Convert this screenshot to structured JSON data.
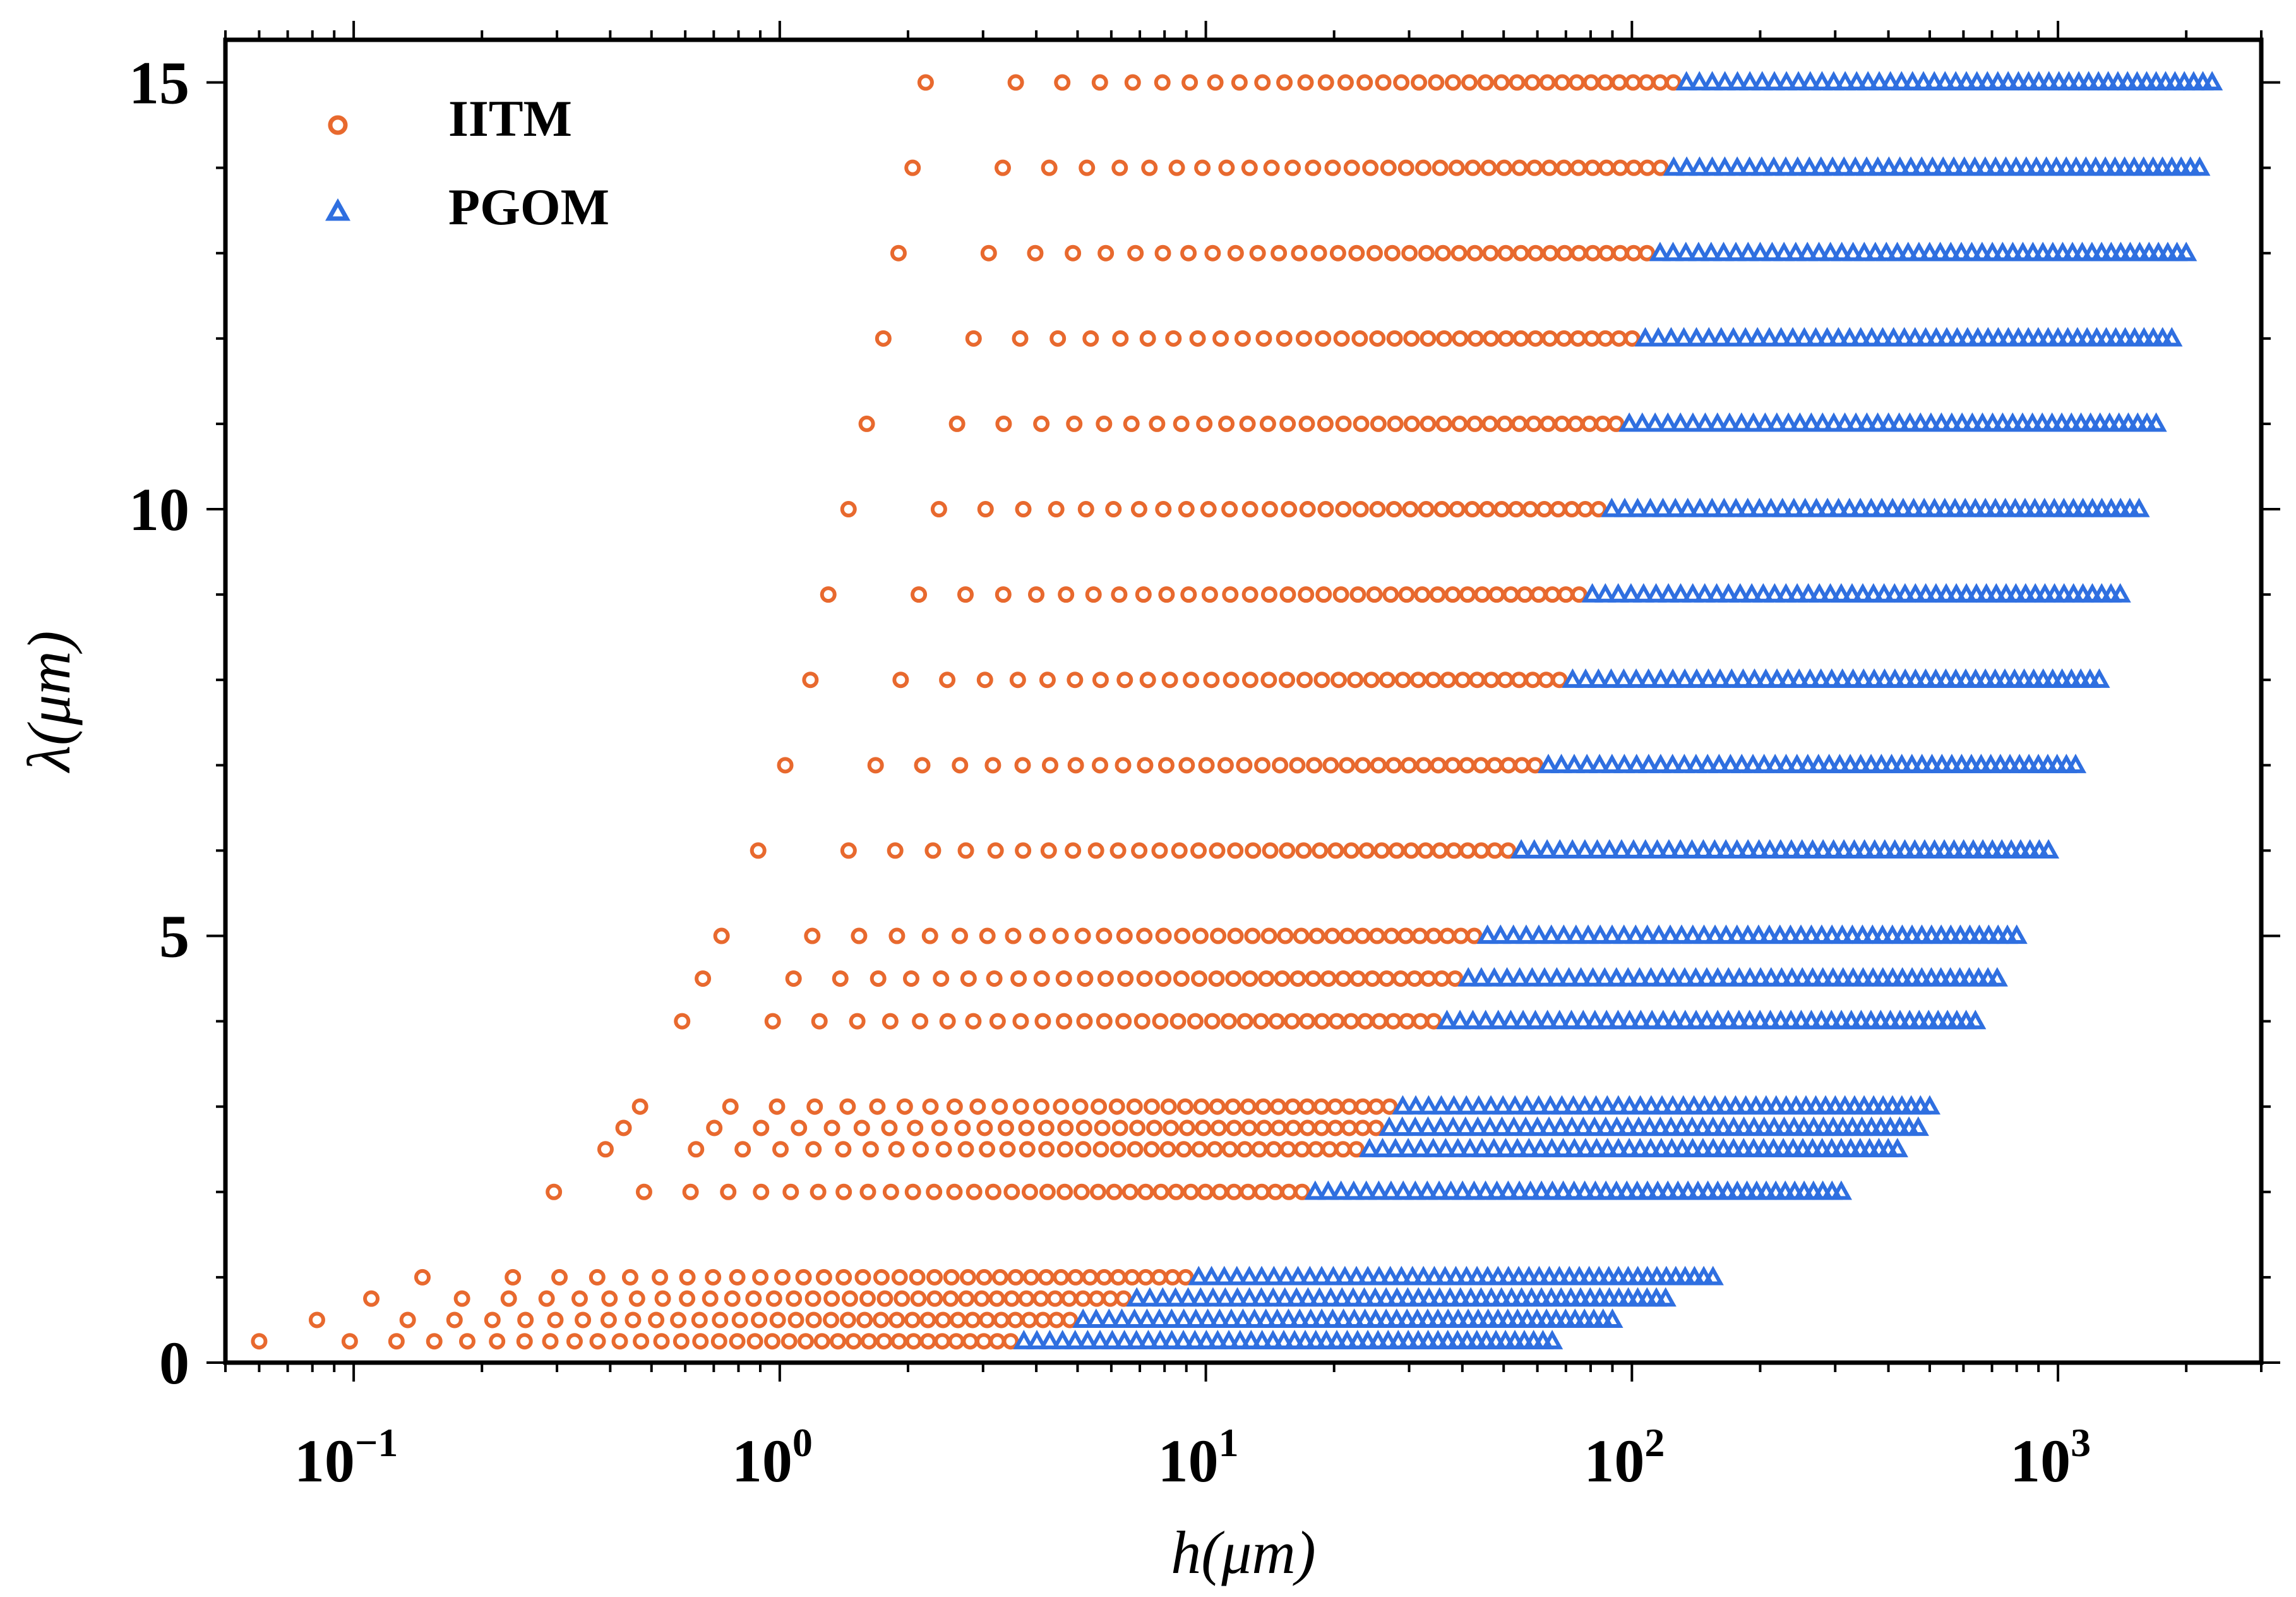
{
  "chart_data": {
    "type": "scatter",
    "xlabel": "h(μm)",
    "ylabel": "λ(μm)",
    "xscale": "log",
    "xlim": [
      0.05,
      3000
    ],
    "ylim": [
      0,
      15.5
    ],
    "grid": false,
    "legend_position": "top-left",
    "x_ticks": [
      {
        "value": 0.1,
        "base": "10",
        "exp": "−1"
      },
      {
        "value": 1,
        "base": "10",
        "exp": "0"
      },
      {
        "value": 10,
        "base": "10",
        "exp": "1"
      },
      {
        "value": 100,
        "base": "10",
        "exp": "2"
      },
      {
        "value": 1000,
        "base": "10",
        "exp": "3"
      }
    ],
    "y_ticks": [
      {
        "value": 0,
        "label": "0"
      },
      {
        "value": 5,
        "label": "5"
      },
      {
        "value": 10,
        "label": "10"
      },
      {
        "value": 15,
        "label": "15"
      }
    ],
    "series": [
      {
        "name": "IITM",
        "marker": "circle",
        "color": "#e8692e"
      },
      {
        "name": "PGOM",
        "marker": "triangle",
        "color": "#2f6fe0"
      }
    ],
    "rows": [
      {
        "y": 15.0,
        "h_start": 2.2,
        "h_switch": 130,
        "h_end": 2300
      },
      {
        "y": 14.0,
        "h_start": 2.05,
        "h_switch": 122,
        "h_end": 2150
      },
      {
        "y": 13.0,
        "h_start": 1.9,
        "h_switch": 114,
        "h_end": 2000
      },
      {
        "y": 12.0,
        "h_start": 1.75,
        "h_switch": 105,
        "h_end": 1850
      },
      {
        "y": 11.0,
        "h_start": 1.6,
        "h_switch": 97,
        "h_end": 1700
      },
      {
        "y": 10.0,
        "h_start": 1.45,
        "h_switch": 88,
        "h_end": 1550
      },
      {
        "y": 9.0,
        "h_start": 1.3,
        "h_switch": 79,
        "h_end": 1400
      },
      {
        "y": 8.0,
        "h_start": 1.18,
        "h_switch": 71,
        "h_end": 1250
      },
      {
        "y": 7.0,
        "h_start": 1.03,
        "h_switch": 62,
        "h_end": 1100
      },
      {
        "y": 6.0,
        "h_start": 0.89,
        "h_switch": 53,
        "h_end": 950
      },
      {
        "y": 5.0,
        "h_start": 0.73,
        "h_switch": 44,
        "h_end": 800
      },
      {
        "y": 4.5,
        "h_start": 0.66,
        "h_switch": 40,
        "h_end": 720
      },
      {
        "y": 4.0,
        "h_start": 0.59,
        "h_switch": 35,
        "h_end": 640
      },
      {
        "y": 3.0,
        "h_start": 0.47,
        "h_switch": 28,
        "h_end": 500
      },
      {
        "y": 2.75,
        "h_start": 0.43,
        "h_switch": 26,
        "h_end": 470
      },
      {
        "y": 2.5,
        "h_start": 0.39,
        "h_switch": 23,
        "h_end": 420
      },
      {
        "y": 2.0,
        "h_start": 0.295,
        "h_switch": 17,
        "h_end": 310
      },
      {
        "y": 1.0,
        "h_start": 0.145,
        "h_switch": 9,
        "h_end": 155
      },
      {
        "y": 0.75,
        "h_start": 0.11,
        "h_switch": 6.5,
        "h_end": 120
      },
      {
        "y": 0.5,
        "h_start": 0.082,
        "h_switch": 5,
        "h_end": 90
      },
      {
        "y": 0.25,
        "h_start": 0.06,
        "h_switch": 3.5,
        "h_end": 65
      }
    ]
  }
}
